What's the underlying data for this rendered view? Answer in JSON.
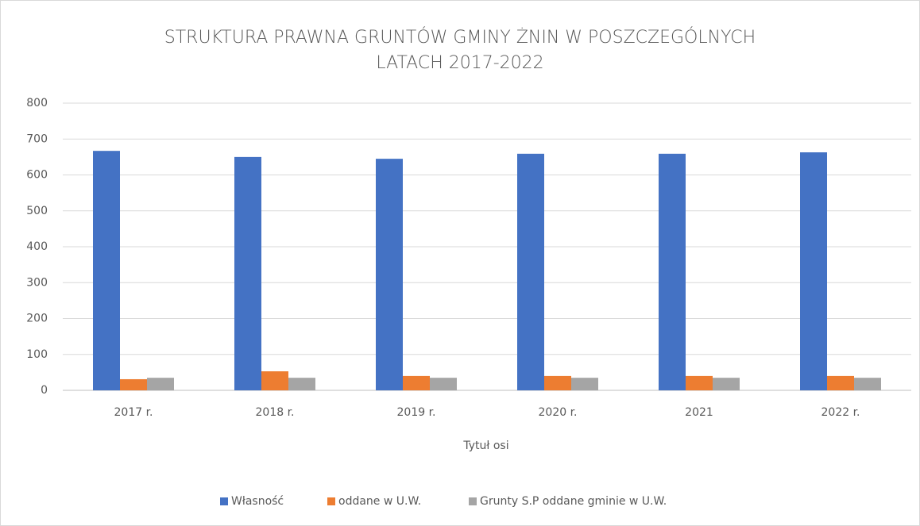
{
  "chart_data": {
    "type": "bar",
    "title": "STRUKTURA PRAWNA GRUNTÓW GMINY ŻNIN W POSZCZEGÓLNYCH LATACH 2017-2022",
    "x_label": "Tytuł osi",
    "categories": [
      "2017 r.",
      "2018 r.",
      "2019 r.",
      "2020 r.",
      "2021",
      "2022 r."
    ],
    "series": [
      {
        "name": "Własność",
        "color": "#4472c4",
        "values": [
          667,
          650,
          645,
          659,
          659,
          663
        ]
      },
      {
        "name": "oddane w U.W.",
        "color": "#ed7d31",
        "values": [
          31,
          53,
          40,
          40,
          40,
          40
        ]
      },
      {
        "name": "Grunty S.P oddane gminie w U.W.",
        "color": "#a5a5a5",
        "values": [
          35,
          35,
          35,
          35,
          35,
          35
        ]
      }
    ],
    "ylim": [
      0,
      800
    ],
    "yticks": [
      0,
      100,
      200,
      300,
      400,
      500,
      600,
      700,
      800
    ],
    "grid": true,
    "legend": "bottom"
  }
}
